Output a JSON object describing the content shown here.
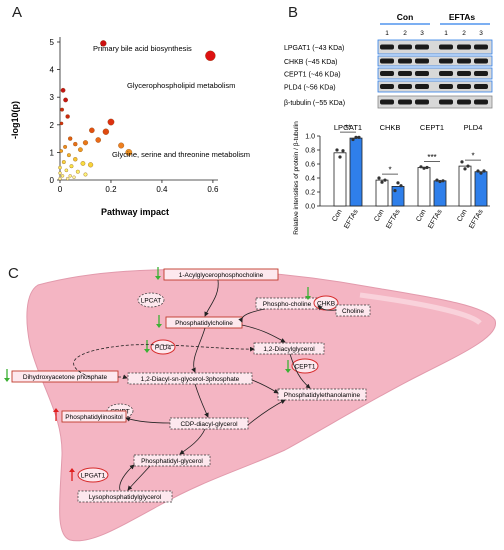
{
  "panel_a": {
    "label": "A",
    "annotations": {
      "bile": "Primary bile acid biosynthesis",
      "glycero": "Glycerophospholipid metabolism",
      "glycine": "Glycine, serine and threonine metabolism"
    },
    "chart_data": {
      "type": "scatter",
      "xlabel": "Pathway impact",
      "ylabel": "-log10(p)",
      "xlim": [
        0,
        0.62
      ],
      "ylim": [
        0,
        5
      ],
      "xticks": [
        "0",
        "0.2",
        "0.4",
        "0.6"
      ],
      "yticks": [
        "0",
        "1",
        "2",
        "3",
        "4",
        "5"
      ],
      "points": [
        {
          "x": 0.17,
          "y": 4.95,
          "color": "#cc1010",
          "size": 3
        },
        {
          "x": 0.59,
          "y": 4.5,
          "color": "#dd1111",
          "size": 5
        },
        {
          "x": 0.012,
          "y": 3.25,
          "color": "#c41515",
          "size": 2.2
        },
        {
          "x": 0.022,
          "y": 2.9,
          "color": "#c41515",
          "size": 2.2
        },
        {
          "x": 0.008,
          "y": 2.55,
          "color": "#cc2a10",
          "size": 1.8
        },
        {
          "x": 0.03,
          "y": 2.3,
          "color": "#cc2a10",
          "size": 2
        },
        {
          "x": 0.006,
          "y": 2.05,
          "color": "#d43010",
          "size": 1.6
        },
        {
          "x": 0.2,
          "y": 2.1,
          "color": "#dd3010",
          "size": 3.2
        },
        {
          "x": 0.18,
          "y": 1.75,
          "color": "#e04a10",
          "size": 3
        },
        {
          "x": 0.125,
          "y": 1.8,
          "color": "#e05010",
          "size": 2.6
        },
        {
          "x": 0.27,
          "y": 1.0,
          "color": "#ee9020",
          "size": 3.2
        },
        {
          "x": 0.24,
          "y": 1.25,
          "color": "#ee8020",
          "size": 2.8
        },
        {
          "x": 0.15,
          "y": 1.45,
          "color": "#ea6a18",
          "size": 2.6
        },
        {
          "x": 0.04,
          "y": 1.5,
          "color": "#e06010",
          "size": 2
        },
        {
          "x": 0.06,
          "y": 1.3,
          "color": "#e87018",
          "size": 2
        },
        {
          "x": 0.1,
          "y": 1.35,
          "color": "#ea7818",
          "size": 2.4
        },
        {
          "x": 0.08,
          "y": 1.1,
          "color": "#ef9a20",
          "size": 2.2
        },
        {
          "x": 0.02,
          "y": 1.2,
          "color": "#eb8a1c",
          "size": 1.8
        },
        {
          "x": 0.005,
          "y": 1.05,
          "color": "#f0a020",
          "size": 1.6
        },
        {
          "x": 0.035,
          "y": 0.9,
          "color": "#f2b22a",
          "size": 1.8
        },
        {
          "x": 0.06,
          "y": 0.75,
          "color": "#f5c430",
          "size": 2
        },
        {
          "x": 0.015,
          "y": 0.65,
          "color": "#f7d240",
          "size": 1.8
        },
        {
          "x": 0.09,
          "y": 0.6,
          "color": "#f8dc40",
          "size": 2.2
        },
        {
          "x": 0.045,
          "y": 0.5,
          "color": "#fae44a",
          "size": 1.8
        },
        {
          "x": 0.12,
          "y": 0.55,
          "color": "#f8d43a",
          "size": 2.4
        },
        {
          "x": 0.0,
          "y": 0.45,
          "color": "#fbe85a",
          "size": 1.6
        },
        {
          "x": 0.025,
          "y": 0.35,
          "color": "#fcee66",
          "size": 1.6
        },
        {
          "x": 0.07,
          "y": 0.3,
          "color": "#fcee66",
          "size": 1.8
        },
        {
          "x": 0.0,
          "y": 0.25,
          "color": "#fdf27a",
          "size": 1.5
        },
        {
          "x": 0.01,
          "y": 0.15,
          "color": "#fdf480",
          "size": 1.5
        },
        {
          "x": 0.04,
          "y": 0.15,
          "color": "#fdf480",
          "size": 1.5
        },
        {
          "x": 0.0,
          "y": 0.05,
          "color": "#fef8a0",
          "size": 1.5
        },
        {
          "x": 0.03,
          "y": 0.05,
          "color": "#fef8a0",
          "size": 1.5
        },
        {
          "x": 0.055,
          "y": 0.1,
          "color": "#fef8a0",
          "size": 1.5
        },
        {
          "x": 0.1,
          "y": 0.2,
          "color": "#fdf27a",
          "size": 1.8
        }
      ]
    }
  },
  "panel_b": {
    "label": "B",
    "groups": {
      "con": "Con",
      "eftas": "EFTAs"
    },
    "lanes": [
      "1",
      "2",
      "3",
      "1",
      "2",
      "3"
    ],
    "blots": [
      "LPGAT1 (~43 KDa)",
      "CHKB (~45 KDa)",
      "CEPT1 (~46 KDa)",
      "PLD4 (~56 KDa)",
      "β-tubulin (~55 KDa)"
    ],
    "chart_data": {
      "type": "bar",
      "ylabel": "Relative intensities of protein / β-tubulin",
      "ylim": [
        0,
        1.0
      ],
      "yticks": [
        "0.0",
        "0.2",
        "0.4",
        "0.6",
        "0.8",
        "1.0"
      ],
      "proteins": [
        "LPGAT1",
        "CHKB",
        "CEPT1",
        "PLD4"
      ],
      "xticks": [
        "Con",
        "EFTAs"
      ],
      "con_color": "#ffffff",
      "eftas_color": "#2f7fea",
      "series": [
        {
          "name": "Con",
          "values": [
            0.76,
            0.37,
            0.55,
            0.57
          ]
        },
        {
          "name": "EFTAs",
          "values": [
            0.97,
            0.28,
            0.36,
            0.49
          ]
        }
      ],
      "points": {
        "Con": [
          [
            0.8,
            0.7,
            0.79
          ],
          [
            0.4,
            0.34,
            0.37
          ],
          [
            0.56,
            0.54,
            0.55
          ],
          [
            0.63,
            0.53,
            0.57
          ]
        ],
        "EFTAs": [
          [
            0.95,
            0.98,
            0.98
          ],
          [
            0.22,
            0.33,
            0.29
          ],
          [
            0.37,
            0.35,
            0.36
          ],
          [
            0.5,
            0.47,
            0.5
          ]
        ]
      },
      "significance": [
        "**",
        "*",
        "***",
        "*"
      ]
    }
  },
  "panel_c": {
    "label": "C",
    "proteins": {
      "lpcat": "LPCAT",
      "chkb": "CHKB",
      "pld4": "PLD4",
      "cept1": "CEPT1",
      "cdipt": "CDIPT",
      "lpgat1": "LPGAT1"
    },
    "metabolites": {
      "acylglycerophosphocholine": "1-Acylglycerophosphocholine",
      "phosphocholine": "Phospho-choline",
      "choline": "Choline",
      "phosphatidylcholine": "Phosphatidylcholine",
      "diacylglycerol": "1,2-Diacylglycerol",
      "dhap": "Dihydroxyacetone phosphate",
      "diacylglycerol3p": "1,2-Diacyl-sn-glycerol-3phosphate",
      "phosphatidylethanolamine": "Phosphatidylethanolamine",
      "phosphatidylinositol": "Phosphatidylinositol",
      "cdp_diacylglycerol": "CDP-diacyl-glycerol",
      "phosphatidylglycerol": "Phosphatidyl-glycerol",
      "lysophosphatidylglycerol": "Lysophosphatidylglycerol"
    },
    "colors": {
      "liver": "#f4b5c3",
      "liver_dark": "#e98ea5",
      "up": "#e02020",
      "down": "#3cb034",
      "enzyme_ring": "#d62a2a",
      "metabolite_ring": "#c0392b"
    }
  }
}
